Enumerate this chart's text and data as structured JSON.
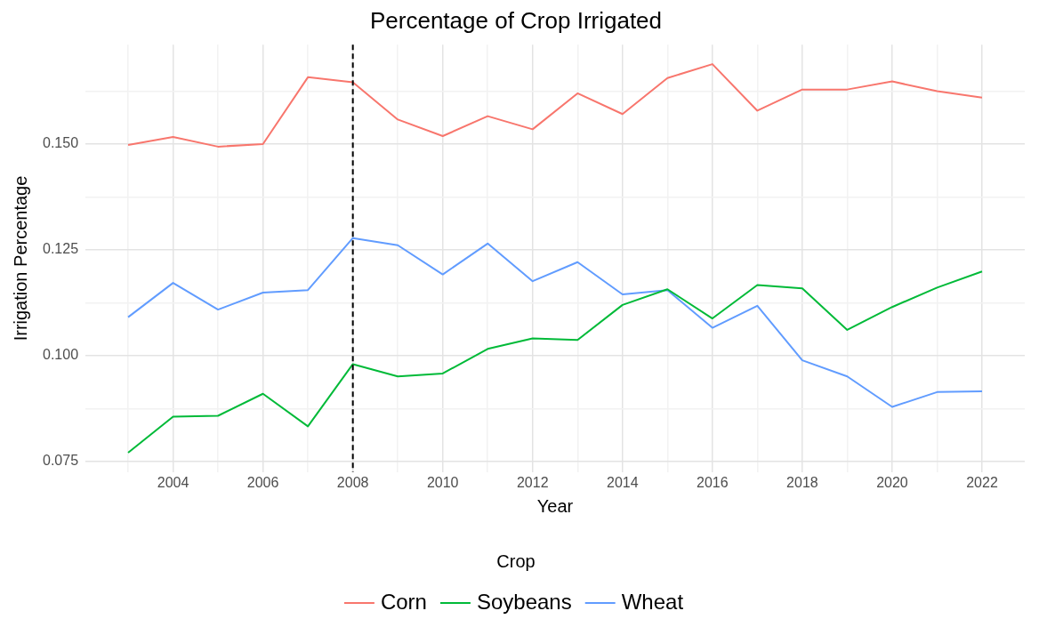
{
  "chart_data": {
    "type": "line",
    "title": "Percentage of Crop Irrigated",
    "xlabel": "Year",
    "ylabel": "Irrigation Percentage",
    "legend_title": "Crop",
    "legend": "bottom",
    "grid": true,
    "marker": "none",
    "x": [
      2003,
      2004,
      2005,
      2006,
      2007,
      2008,
      2009,
      2010,
      2011,
      2012,
      2013,
      2014,
      2015,
      2016,
      2017,
      2018,
      2019,
      2020,
      2021,
      2022
    ],
    "series": [
      {
        "name": "Corn",
        "color": "#f8766d",
        "values": [
          0.1498,
          0.1517,
          0.1494,
          0.15,
          0.1658,
          0.1646,
          0.1558,
          0.1519,
          0.1566,
          0.1535,
          0.162,
          0.1571,
          0.1656,
          0.1689,
          0.1579,
          0.1629,
          0.1629,
          0.1648,
          0.1625,
          0.161
        ]
      },
      {
        "name": "Soybeans",
        "color": "#00ba38",
        "values": [
          0.0771,
          0.0856,
          0.0858,
          0.091,
          0.0833,
          0.098,
          0.0951,
          0.0958,
          0.1016,
          0.1041,
          0.1037,
          0.112,
          0.1157,
          0.1088,
          0.1167,
          0.1159,
          0.1061,
          0.1115,
          0.1161,
          0.1199
        ]
      },
      {
        "name": "Wheat",
        "color": "#619cff",
        "values": [
          0.1091,
          0.1172,
          0.1109,
          0.1149,
          0.1155,
          0.1278,
          0.1261,
          0.1192,
          0.1265,
          0.1176,
          0.1221,
          0.1145,
          0.1155,
          0.1066,
          0.1118,
          0.0989,
          0.0951,
          0.0879,
          0.0914,
          0.0916
        ]
      }
    ],
    "xlim": [
      2002.05,
      2022.95
    ],
    "ylim": [
      0.0725,
      0.1735
    ],
    "xticks": [
      {
        "value": 2003,
        "label": null
      },
      2004,
      {
        "value": 2005,
        "label": null
      },
      2006,
      {
        "value": 2007,
        "label": null
      },
      2008,
      {
        "value": 2009,
        "label": null
      },
      2010,
      {
        "value": 2011,
        "label": null
      },
      2012,
      {
        "value": 2013,
        "label": null
      },
      2014,
      {
        "value": 2015,
        "label": null
      },
      2016,
      {
        "value": 2017,
        "label": null
      },
      2018,
      {
        "value": 2019,
        "label": null
      },
      2020,
      {
        "value": 2021,
        "label": null
      },
      2022
    ],
    "yticks": [
      {
        "value": 0.075,
        "label": "0.075"
      },
      {
        "value": 0.0875,
        "label": null
      },
      {
        "value": 0.1,
        "label": "0.100"
      },
      {
        "value": 0.1125,
        "label": null
      },
      {
        "value": 0.125,
        "label": "0.125"
      },
      {
        "value": 0.1375,
        "label": null
      },
      {
        "value": 0.15,
        "label": "0.150"
      },
      {
        "value": 0.1625,
        "label": null
      }
    ],
    "ref_lines": [
      {
        "axis": "x",
        "value": 2008,
        "color": "#000000",
        "line_style": "dashed"
      }
    ]
  }
}
